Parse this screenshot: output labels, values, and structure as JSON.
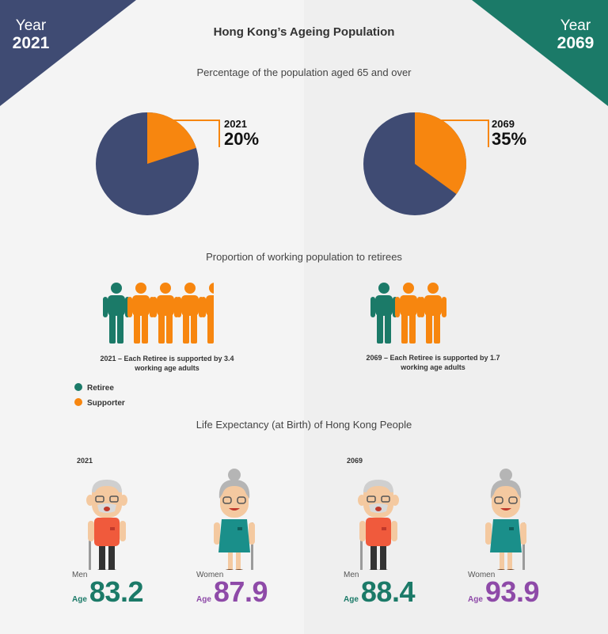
{
  "colors": {
    "navy": "#3f4b73",
    "teal": "#1b7a68",
    "orange": "#f7860f",
    "purple": "#8e4aa8"
  },
  "corners": {
    "left": {
      "label": "Year",
      "year": "2021"
    },
    "right": {
      "label": "Year",
      "year": "2069"
    }
  },
  "title": "Hong Kong’s Ageing Population",
  "pie_section": {
    "heading": "Percentage of the population aged 65 and over",
    "pies": [
      {
        "year": "2021",
        "label": "20%",
        "value": 20
      },
      {
        "year": "2069",
        "label": "35%",
        "value": 35
      }
    ]
  },
  "workforce_section": {
    "heading": "Proportion of working population to retirees",
    "groups": [
      {
        "year": "2021",
        "ratio": 3.4,
        "caption_line1": "2021 – Each Retiree is supported by 3.4",
        "caption_line2": "working age adults"
      },
      {
        "year": "2069",
        "ratio": 1.7,
        "caption_line1": "2069 – Each Retiree is supported by 1.7",
        "caption_line2": "working age adults"
      }
    ],
    "legend": [
      {
        "label": "Retiree",
        "color": "#1b7a68"
      },
      {
        "label": "Supporter",
        "color": "#f7860f"
      }
    ]
  },
  "life_section": {
    "heading": "Life Expectancy (at Birth) of Hong Kong People",
    "age_label": "Age",
    "groups": [
      {
        "year": "2021",
        "men": {
          "label": "Men",
          "value": "83.2"
        },
        "women": {
          "label": "Women",
          "value": "87.9"
        }
      },
      {
        "year": "2069",
        "men": {
          "label": "Men",
          "value": "88.4"
        },
        "women": {
          "label": "Women",
          "value": "93.9"
        }
      }
    ]
  }
}
